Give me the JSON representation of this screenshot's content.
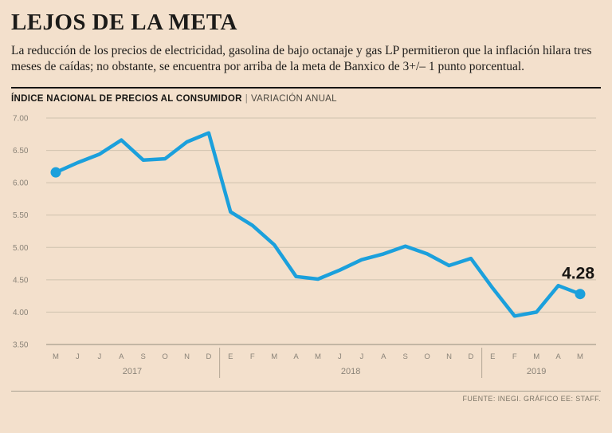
{
  "header": {
    "title": "LEJOS DE LA META",
    "subtitle": "La reducción de los precios de electricidad, gasolina de bajo octanaje y gas LP permitieron que la inflación hilara tres meses de caídas; no obstante, se encuentra por arriba de la meta de Banxico de 3+/– 1 punto porcentual."
  },
  "chart_header": {
    "title": "ÍNDICE NACIONAL DE PRECIOS AL CONSUMIDOR",
    "separator": "|",
    "subtitle": "VARIACIÓN ANUAL"
  },
  "footer": {
    "source": "FUENTE: INEGI. GRÁFICO EE: STAFF."
  },
  "chart_data": {
    "type": "line",
    "title": "ÍNDICE NACIONAL DE PRECIOS AL CONSUMIDOR | VARIACIÓN ANUAL",
    "x_tick_labels": [
      "M",
      "J",
      "J",
      "A",
      "S",
      "O",
      "N",
      "D",
      "E",
      "F",
      "M",
      "A",
      "M",
      "J",
      "J",
      "A",
      "S",
      "O",
      "N",
      "D",
      "E",
      "F",
      "M",
      "A",
      "M"
    ],
    "year_groups": [
      {
        "label": "2017",
        "start": 0,
        "end": 7
      },
      {
        "label": "2018",
        "start": 8,
        "end": 19
      },
      {
        "label": "2019",
        "start": 20,
        "end": 24
      }
    ],
    "values": [
      6.16,
      6.31,
      6.44,
      6.66,
      6.35,
      6.37,
      6.63,
      6.77,
      5.55,
      5.34,
      5.04,
      4.55,
      4.51,
      4.65,
      4.81,
      4.9,
      5.02,
      4.9,
      4.72,
      4.83,
      4.37,
      3.94,
      4.0,
      4.41,
      4.28
    ],
    "ylim": [
      3.5,
      7.0
    ],
    "y_ticks": [
      7.0,
      6.5,
      6.0,
      5.5,
      5.0,
      4.5,
      4.0,
      3.5
    ],
    "end_label": "4.28",
    "line_color": "#1ba0dc",
    "grid_color": "#cfc2ae",
    "axis_color": "#b3a796",
    "label_color": "#8a8378",
    "end_label_color": "#181613",
    "grid": true,
    "legend_position": "none"
  }
}
